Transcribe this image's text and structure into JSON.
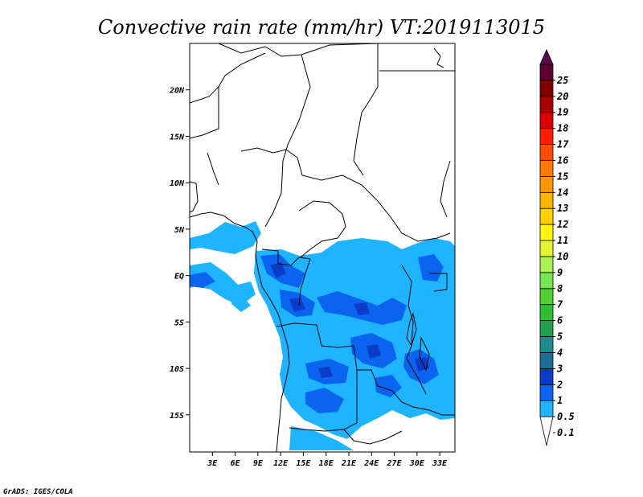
{
  "title": "Convective rain rate (mm/hr) VT:2019113015",
  "credit": "GrADS: IGES/COLA",
  "map": {
    "lon_range": [
      0,
      35
    ],
    "lat_range": [
      -19,
      25
    ],
    "lon_ticks": [
      "3E",
      "6E",
      "9E",
      "12E",
      "15E",
      "18E",
      "21E",
      "24E",
      "27E",
      "30E",
      "33E"
    ],
    "lon_tick_values": [
      3,
      6,
      9,
      12,
      15,
      18,
      21,
      24,
      27,
      30,
      33
    ],
    "lat_ticks": [
      "20N",
      "15N",
      "10N",
      "5N",
      "EQ",
      "5S",
      "10S",
      "15S"
    ],
    "lat_tick_values": [
      20,
      15,
      10,
      5,
      0,
      -5,
      -10,
      -15
    ]
  },
  "colorbar": {
    "labels": [
      "0.1",
      "0.5",
      "1",
      "2",
      "3",
      "4",
      "5",
      "6",
      "7",
      "8",
      "9",
      "10",
      "11",
      "12",
      "13",
      "14",
      "15",
      "16",
      "17",
      "18",
      "19",
      "20",
      "25"
    ],
    "colors": [
      "#ffffff",
      "#1eb4ff",
      "#0a64f0",
      "#0a3cc8",
      "#1e6e96",
      "#1e8c8c",
      "#1ea050",
      "#32be32",
      "#50d232",
      "#78e650",
      "#aaf050",
      "#e6f532",
      "#fff514",
      "#ffd200",
      "#ffb400",
      "#ff9600",
      "#ff7800",
      "#ff4b00",
      "#ff1e00",
      "#dc0000",
      "#aa0000",
      "#820000",
      "#5a0032"
    ],
    "top_color": "#5a0a46"
  }
}
